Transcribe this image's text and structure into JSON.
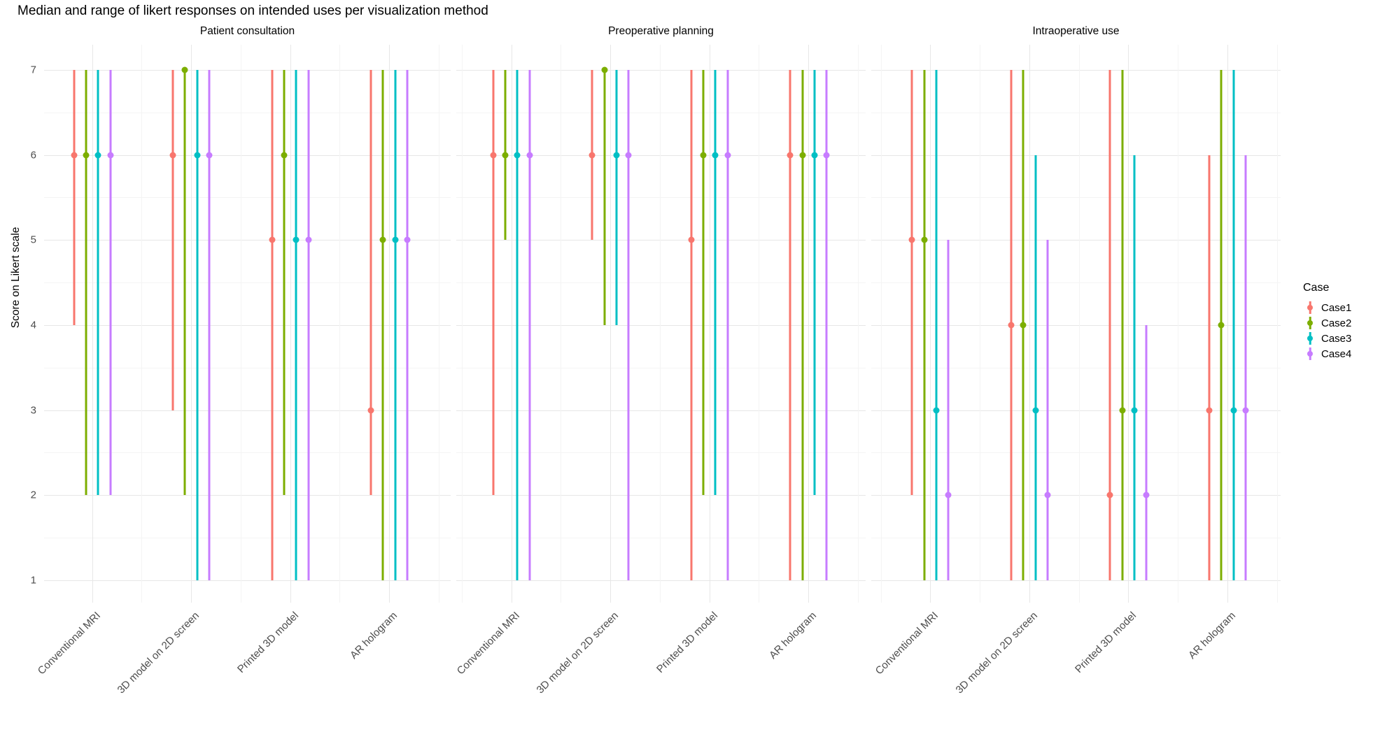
{
  "title": "Median and range of likert responses on intended uses per visualization method",
  "legend": {
    "title": "Case",
    "entries": [
      {
        "label": "Case1",
        "color": "#F8766D"
      },
      {
        "label": "Case2",
        "color": "#7CAE00"
      },
      {
        "label": "Case3",
        "color": "#00BFC4"
      },
      {
        "label": "Case4",
        "color": "#C77CFF"
      }
    ]
  },
  "chart_data": {
    "type": "range-median-dotplot",
    "title": "Median and range of likert responses on intended uses per visualization method",
    "ylabel": "Score on Likert scale",
    "xlabel": "",
    "ylim": [
      1,
      7
    ],
    "y_ticks": [
      7,
      6,
      5,
      4,
      3,
      2,
      1
    ],
    "grid": "major+minor",
    "legend_position": "right",
    "legend_title": "Case",
    "series": [
      "Case1",
      "Case2",
      "Case3",
      "Case4"
    ],
    "series_colors": [
      "#F8766D",
      "#7CAE00",
      "#00BFC4",
      "#C77CFF"
    ],
    "categories": [
      "Conventional MRI",
      "3D model on 2D screen",
      "Printed 3D model",
      "AR hologram"
    ],
    "value_format": "[min, median, max] on 7-point Likert scale, per case in series order",
    "facets": [
      {
        "label": "Patient consultation",
        "methods": [
          {
            "name": "Conventional MRI",
            "ranges": [
              [
                4,
                6,
                7
              ],
              [
                2,
                6,
                7
              ],
              [
                2,
                6,
                7
              ],
              [
                2,
                6,
                7
              ]
            ]
          },
          {
            "name": "3D model on 2D screen",
            "ranges": [
              [
                3,
                6,
                7
              ],
              [
                2,
                7,
                7
              ],
              [
                1,
                6,
                7
              ],
              [
                1,
                6,
                7
              ]
            ]
          },
          {
            "name": "Printed 3D model",
            "ranges": [
              [
                1,
                5,
                7
              ],
              [
                2,
                6,
                7
              ],
              [
                1,
                5,
                7
              ],
              [
                1,
                5,
                7
              ]
            ]
          },
          {
            "name": "AR hologram",
            "ranges": [
              [
                2,
                3,
                7
              ],
              [
                1,
                5,
                7
              ],
              [
                1,
                5,
                7
              ],
              [
                1,
                5,
                7
              ]
            ]
          }
        ]
      },
      {
        "label": "Preoperative planning",
        "methods": [
          {
            "name": "Conventional MRI",
            "ranges": [
              [
                2,
                6,
                7
              ],
              [
                5,
                6,
                7
              ],
              [
                1,
                6,
                7
              ],
              [
                1,
                6,
                7
              ]
            ]
          },
          {
            "name": "3D model on 2D screen",
            "ranges": [
              [
                5,
                6,
                7
              ],
              [
                4,
                7,
                7
              ],
              [
                4,
                6,
                7
              ],
              [
                1,
                6,
                7
              ]
            ]
          },
          {
            "name": "Printed 3D model",
            "ranges": [
              [
                1,
                5,
                7
              ],
              [
                2,
                6,
                7
              ],
              [
                2,
                6,
                7
              ],
              [
                1,
                6,
                7
              ]
            ]
          },
          {
            "name": "AR hologram",
            "ranges": [
              [
                1,
                6,
                7
              ],
              [
                1,
                6,
                7
              ],
              [
                2,
                6,
                7
              ],
              [
                1,
                6,
                7
              ]
            ]
          }
        ]
      },
      {
        "label": "Intraoperative use",
        "methods": [
          {
            "name": "Conventional MRI",
            "ranges": [
              [
                2,
                5,
                7
              ],
              [
                1,
                5,
                7
              ],
              [
                1,
                3,
                7
              ],
              [
                1,
                2,
                5
              ]
            ]
          },
          {
            "name": "3D model on 2D screen",
            "ranges": [
              [
                1,
                4,
                7
              ],
              [
                1,
                4,
                7
              ],
              [
                1,
                3,
                6
              ],
              [
                1,
                2,
                5
              ]
            ]
          },
          {
            "name": "Printed 3D model",
            "ranges": [
              [
                1,
                2,
                7
              ],
              [
                1,
                3,
                7
              ],
              [
                1,
                3,
                6
              ],
              [
                1,
                2,
                4
              ]
            ]
          },
          {
            "name": "AR hologram",
            "ranges": [
              [
                1,
                3,
                6
              ],
              [
                1,
                4,
                7
              ],
              [
                1,
                3,
                7
              ],
              [
                1,
                3,
                6
              ]
            ]
          }
        ]
      }
    ]
  }
}
